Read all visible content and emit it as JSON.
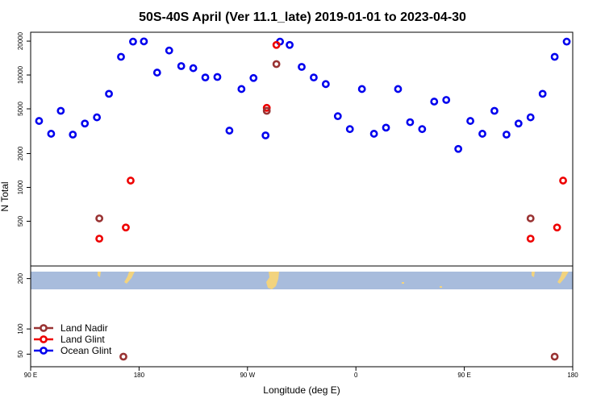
{
  "chart_data": {
    "type": "scatter",
    "title": "50S-40S April (Ver 11.1_late)   2019-01-01 to 2023-04-30",
    "xlabel": "Longitude (deg E)",
    "ylabel": "N Total",
    "x_axis": {
      "range_deg_east": [
        90,
        450
      ],
      "ticks": [
        {
          "value": 90,
          "label": "90 E"
        },
        {
          "value": 180,
          "label": "180"
        },
        {
          "value": 270,
          "label": "90 W"
        },
        {
          "value": 360,
          "label": "0"
        },
        {
          "value": 450,
          "label": "90 E"
        },
        {
          "value": 540,
          "label": "180"
        }
      ],
      "plotted_range": [
        90,
        540
      ]
    },
    "upper_panel": {
      "scale": "log",
      "ylim": [
        200,
        24000
      ],
      "y_ticks": [
        {
          "value": 500,
          "label": "500"
        },
        {
          "value": 1000,
          "label": "1000"
        },
        {
          "value": 2000,
          "label": "2000"
        },
        {
          "value": 5000,
          "label": "5000"
        },
        {
          "value": 10000,
          "label": "10000"
        },
        {
          "value": 20000,
          "label": "20000"
        }
      ]
    },
    "lower_panel": {
      "scale": "linear",
      "ylim": [
        25,
        225
      ],
      "y_ticks": [
        {
          "value": 50,
          "label": "50"
        },
        {
          "value": 100,
          "label": "100"
        },
        {
          "value": 200,
          "label": "200"
        }
      ],
      "map_strip": {
        "ocean_color": "#a8bcdc",
        "land_color": "#f2d37e",
        "lat_range": "50S-40S"
      }
    },
    "legend": {
      "placement": "bottom-left",
      "entries": [
        {
          "label": "Land Nadir",
          "color": "#993333"
        },
        {
          "label": "Land Glint",
          "color": "#ee0000"
        },
        {
          "label": "Ocean Glint",
          "color": "#0000ee"
        }
      ]
    },
    "series": [
      {
        "name": "Ocean Glint",
        "color": "#0000ee",
        "points": [
          {
            "x": 97,
            "y": 3900
          },
          {
            "x": 107,
            "y": 3000
          },
          {
            "x": 115,
            "y": 4800
          },
          {
            "x": 125,
            "y": 2950
          },
          {
            "x": 135,
            "y": 3700
          },
          {
            "x": 145,
            "y": 4200
          },
          {
            "x": 155,
            "y": 6800
          },
          {
            "x": 165,
            "y": 14500
          },
          {
            "x": 175,
            "y": 19800
          },
          {
            "x": 184,
            "y": 19900
          },
          {
            "x": 195,
            "y": 10500
          },
          {
            "x": 205,
            "y": 16500
          },
          {
            "x": 215,
            "y": 12000
          },
          {
            "x": 225,
            "y": 11500
          },
          {
            "x": 235,
            "y": 9500
          },
          {
            "x": 245,
            "y": 9600
          },
          {
            "x": 255,
            "y": 3200
          },
          {
            "x": 265,
            "y": 7500
          },
          {
            "x": 275,
            "y": 9400
          },
          {
            "x": 285,
            "y": 2900
          },
          {
            "x": 297,
            "y": 19800
          },
          {
            "x": 305,
            "y": 18500
          },
          {
            "x": 315,
            "y": 11800
          },
          {
            "x": 325,
            "y": 9500
          },
          {
            "x": 335,
            "y": 8300
          },
          {
            "x": 345,
            "y": 4300
          },
          {
            "x": 355,
            "y": 3300
          },
          {
            "x": 365,
            "y": 7500
          },
          {
            "x": 375,
            "y": 3000
          },
          {
            "x": 385,
            "y": 3400
          },
          {
            "x": 395,
            "y": 7500
          },
          {
            "x": 405,
            "y": 3800
          },
          {
            "x": 415,
            "y": 3300
          },
          {
            "x": 425,
            "y": 5800
          },
          {
            "x": 435,
            "y": 6000
          },
          {
            "x": 445,
            "y": 2200
          },
          {
            "x": 455,
            "y": 3900
          },
          {
            "x": 465,
            "y": 3000
          },
          {
            "x": 475,
            "y": 4800
          },
          {
            "x": 485,
            "y": 2950
          },
          {
            "x": 495,
            "y": 3700
          },
          {
            "x": 505,
            "y": 4200
          },
          {
            "x": 515,
            "y": 6800
          },
          {
            "x": 525,
            "y": 14500
          },
          {
            "x": 535,
            "y": 19800
          }
        ]
      },
      {
        "name": "Land Glint",
        "color": "#ee0000",
        "points": [
          {
            "x": 147,
            "y": 350
          },
          {
            "x": 169,
            "y": 440
          },
          {
            "x": 173,
            "y": 1150
          },
          {
            "x": 286,
            "y": 5100
          },
          {
            "x": 294,
            "y": 18500
          },
          {
            "x": 505,
            "y": 350
          },
          {
            "x": 527,
            "y": 440
          },
          {
            "x": 532,
            "y": 1150
          }
        ]
      },
      {
        "name": "Land Nadir",
        "color": "#993333",
        "points": [
          {
            "x": 147,
            "y": 530
          },
          {
            "x": 286,
            "y": 4800
          },
          {
            "x": 294,
            "y": 12500
          },
          {
            "x": 505,
            "y": 530
          }
        ]
      }
    ],
    "lower_series": [
      {
        "name": "Land Nadir",
        "color": "#993333",
        "points": [
          {
            "x": 167,
            "y": 45
          },
          {
            "x": 525,
            "y": 45
          }
        ]
      }
    ]
  }
}
